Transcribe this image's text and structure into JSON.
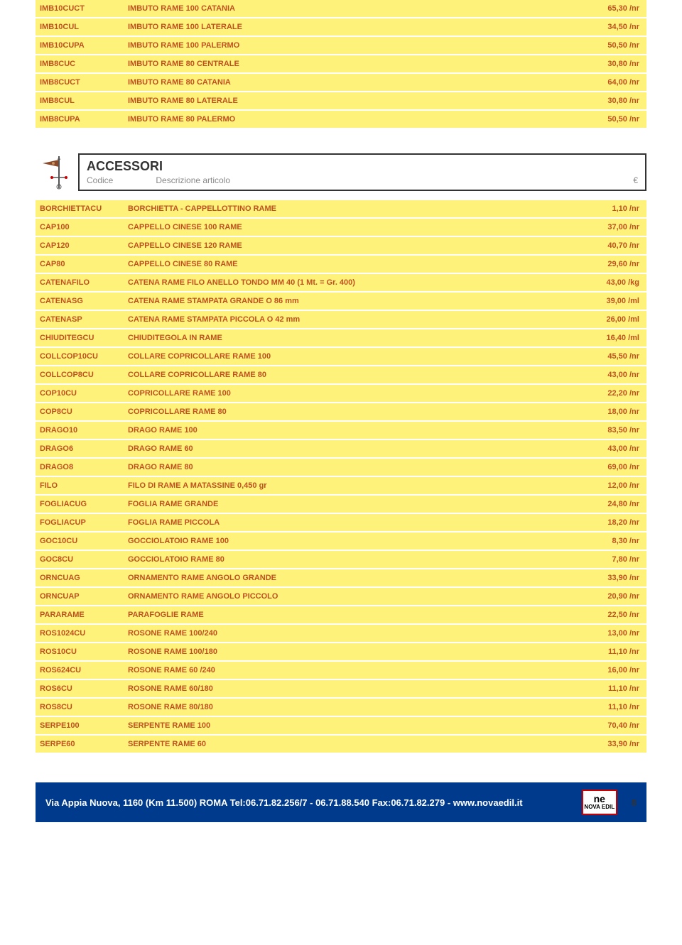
{
  "colors": {
    "row_bg": "#fff27a",
    "text": "#c05020",
    "footer_bg": "#003a8c",
    "border": "#333",
    "subtext": "#888"
  },
  "top_rows": [
    {
      "code": "IMB10CUCT",
      "desc": "IMBUTO RAME 100 CATANIA",
      "price": "65,30 /nr"
    },
    {
      "code": "IMB10CUL",
      "desc": "IMBUTO RAME 100 LATERALE",
      "price": "34,50 /nr"
    },
    {
      "code": "IMB10CUPA",
      "desc": "IMBUTO RAME 100 PALERMO",
      "price": "50,50 /nr"
    },
    {
      "code": "IMB8CUC",
      "desc": "IMBUTO RAME 80 CENTRALE",
      "price": "30,80 /nr"
    },
    {
      "code": "IMB8CUCT",
      "desc": "IMBUTO RAME 80 CATANIA",
      "price": "64,00 /nr"
    },
    {
      "code": "IMB8CUL",
      "desc": "IMBUTO RAME 80 LATERALE",
      "price": "30,80 /nr"
    },
    {
      "code": "IMB8CUPA",
      "desc": "IMBUTO RAME 80 PALERMO",
      "price": "50,50 /nr"
    }
  ],
  "section": {
    "title": "ACCESSORI",
    "sub_left": "Codice",
    "sub_mid": "Descrizione articolo",
    "sub_right": "€"
  },
  "acc_rows": [
    {
      "code": "BORCHIETTACU",
      "desc": "BORCHIETTA - CAPPELLOTTINO RAME",
      "price": "1,10 /nr"
    },
    {
      "code": "CAP100",
      "desc": "CAPPELLO CINESE 100 RAME",
      "price": "37,00 /nr"
    },
    {
      "code": "CAP120",
      "desc": "CAPPELLO CINESE 120 RAME",
      "price": "40,70 /nr"
    },
    {
      "code": "CAP80",
      "desc": "CAPPELLO CINESE 80 RAME",
      "price": "29,60 /nr"
    },
    {
      "code": "CATENAFILO",
      "desc": "CATENA RAME FILO ANELLO TONDO  MM 40 (1 Mt. = Gr. 400)",
      "price": "43,00 /kg"
    },
    {
      "code": "CATENASG",
      "desc": "CATENA RAME STAMPATA GRANDE O 86 mm",
      "price": "39,00 /ml"
    },
    {
      "code": "CATENASP",
      "desc": "CATENA RAME STAMPATA PICCOLA O 42 mm",
      "price": "26,00 /ml"
    },
    {
      "code": "CHIUDITEGCU",
      "desc": "CHIUDITEGOLA IN RAME",
      "price": "16,40 /ml"
    },
    {
      "code": "COLLCOP10CU",
      "desc": "COLLARE COPRICOLLARE RAME 100",
      "price": "45,50 /nr"
    },
    {
      "code": "COLLCOP8CU",
      "desc": "COLLARE COPRICOLLARE RAME 80",
      "price": "43,00 /nr"
    },
    {
      "code": "COP10CU",
      "desc": "COPRICOLLARE RAME 100",
      "price": "22,20 /nr"
    },
    {
      "code": "COP8CU",
      "desc": "COPRICOLLARE RAME 80",
      "price": "18,00 /nr"
    },
    {
      "code": "DRAGO10",
      "desc": "DRAGO RAME 100",
      "price": "83,50 /nr"
    },
    {
      "code": "DRAGO6",
      "desc": "DRAGO RAME 60",
      "price": "43,00 /nr"
    },
    {
      "code": "DRAGO8",
      "desc": "DRAGO RAME 80",
      "price": "69,00 /nr"
    },
    {
      "code": "FILO",
      "desc": "FILO DI RAME A MATASSINE 0,450 gr",
      "price": "12,00 /nr"
    },
    {
      "code": "FOGLIACUG",
      "desc": "FOGLIA RAME GRANDE",
      "price": "24,80 /nr"
    },
    {
      "code": "FOGLIACUP",
      "desc": "FOGLIA RAME PICCOLA",
      "price": "18,20 /nr"
    },
    {
      "code": "GOC10CU",
      "desc": "GOCCIOLATOIO RAME 100",
      "price": "8,30 /nr"
    },
    {
      "code": "GOC8CU",
      "desc": "GOCCIOLATOIO RAME 80",
      "price": "7,80 /nr"
    },
    {
      "code": "ORNCUAG",
      "desc": "ORNAMENTO RAME ANGOLO GRANDE",
      "price": "33,90 /nr"
    },
    {
      "code": "ORNCUAP",
      "desc": "ORNAMENTO RAME ANGOLO PICCOLO",
      "price": "20,90 /nr"
    },
    {
      "code": "PARARAME",
      "desc": "PARAFOGLIE RAME",
      "price": "22,50 /nr"
    },
    {
      "code": "ROS1024CU",
      "desc": "ROSONE RAME 100/240",
      "price": "13,00 /nr"
    },
    {
      "code": "ROS10CU",
      "desc": "ROSONE RAME 100/180",
      "price": "11,10 /nr"
    },
    {
      "code": "ROS624CU",
      "desc": "ROSONE RAME 60 /240",
      "price": "16,00 /nr"
    },
    {
      "code": "ROS6CU",
      "desc": "ROSONE RAME 60/180",
      "price": "11,10 /nr"
    },
    {
      "code": "ROS8CU",
      "desc": "ROSONE RAME 80/180",
      "price": "11,10 /nr"
    },
    {
      "code": "SERPE100",
      "desc": "SERPENTE RAME 100",
      "price": "70,40 /nr"
    },
    {
      "code": "SERPE60",
      "desc": "SERPENTE RAME 60",
      "price": "33,90 /nr"
    }
  ],
  "footer": {
    "text": "Via Appia Nuova, 1160 (Km 11.500) ROMA Tel:06.71.82.256/7 - 06.71.88.540 Fax:06.71.82.279 - www.novaedil.it",
    "logo_top": "ne",
    "logo_bottom": "NOVA EDIL",
    "page": "8"
  }
}
